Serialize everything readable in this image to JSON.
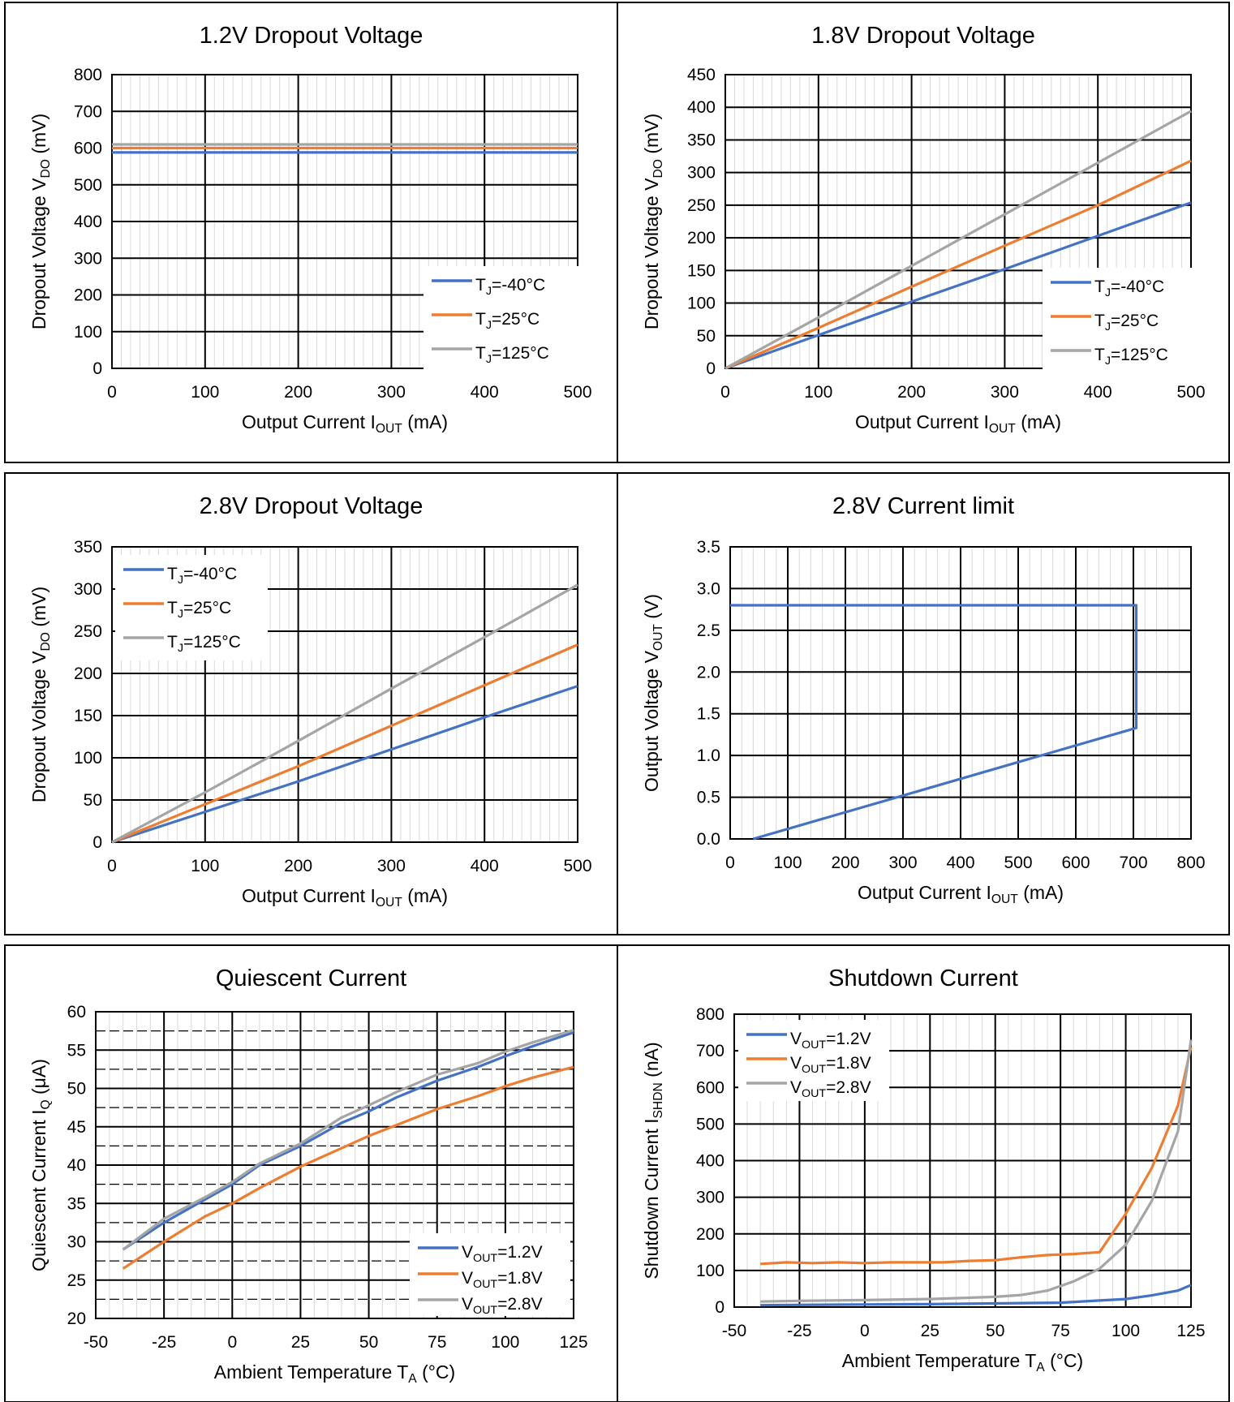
{
  "colors": {
    "blue": "#4472C4",
    "orange": "#ED7D31",
    "gray": "#A5A5A5",
    "major_grid": "#000000",
    "minor_grid": "#D9D9D9",
    "legend_bg": "#ffffff"
  },
  "chart_data": [
    {
      "type": "line",
      "title": "1.2V Dropout Voltage",
      "xlabel": {
        "main": "Output Current I",
        "sub": "OUT",
        "tail": " (mA)"
      },
      "ylabel": {
        "main": "Dropout Voltage V",
        "sub": "DO",
        "tail": " (mV)"
      },
      "xlim": [
        0,
        500
      ],
      "ylim": [
        0,
        800
      ],
      "xticks": [
        0,
        100,
        200,
        300,
        400,
        500
      ],
      "yticks": [
        0,
        100,
        200,
        300,
        400,
        500,
        600,
        700,
        800
      ],
      "xminor": 10,
      "yminor": null,
      "grid": true,
      "legend_position": "bottom-right",
      "series": [
        {
          "name": {
            "main": "T",
            "sub": "J",
            "tail": "=-40°C"
          },
          "color": "blue",
          "x": [
            0,
            500
          ],
          "y": [
            588,
            588
          ]
        },
        {
          "name": {
            "main": "T",
            "sub": "J",
            "tail": "=25°C"
          },
          "color": "orange",
          "x": [
            0,
            500
          ],
          "y": [
            600,
            600
          ]
        },
        {
          "name": {
            "main": "T",
            "sub": "J",
            "tail": "=125°C"
          },
          "color": "gray",
          "x": [
            0,
            500
          ],
          "y": [
            610,
            610
          ]
        }
      ]
    },
    {
      "type": "line",
      "title": "1.8V Dropout Voltage",
      "xlabel": {
        "main": "Output Current I",
        "sub": "OUT",
        "tail": " (mA)"
      },
      "ylabel": {
        "main": "Dropout Voltage V",
        "sub": "DO",
        "tail": " (mV)"
      },
      "xlim": [
        0,
        500
      ],
      "ylim": [
        0,
        450
      ],
      "xticks": [
        0,
        100,
        200,
        300,
        400,
        500
      ],
      "yticks": [
        0,
        50,
        100,
        150,
        200,
        250,
        300,
        350,
        400,
        450
      ],
      "xminor": 10,
      "yminor": null,
      "grid": true,
      "legend_position": "bottom-right",
      "series": [
        {
          "name": {
            "main": "T",
            "sub": "J",
            "tail": "=-40°C"
          },
          "color": "blue",
          "x": [
            0,
            100,
            200,
            300,
            400,
            500
          ],
          "y": [
            0,
            51,
            102,
            152,
            203,
            254
          ]
        },
        {
          "name": {
            "main": "T",
            "sub": "J",
            "tail": "=25°C"
          },
          "color": "orange",
          "x": [
            0,
            100,
            200,
            300,
            400,
            500
          ],
          "y": [
            0,
            62,
            125,
            188,
            250,
            318
          ]
        },
        {
          "name": {
            "main": "T",
            "sub": "J",
            "tail": "=125°C"
          },
          "color": "gray",
          "x": [
            0,
            100,
            200,
            300,
            400,
            500
          ],
          "y": [
            0,
            78,
            157,
            236,
            315,
            394
          ]
        }
      ]
    },
    {
      "type": "line",
      "title": "2.8V Dropout Voltage",
      "xlabel": {
        "main": "Output Current I",
        "sub": "OUT",
        "tail": " (mA)"
      },
      "ylabel": {
        "main": "Dropout Voltage V",
        "sub": "DO",
        "tail": " (mV)"
      },
      "xlim": [
        0,
        500
      ],
      "ylim": [
        0,
        350
      ],
      "xticks": [
        0,
        100,
        200,
        300,
        400,
        500
      ],
      "yticks": [
        0,
        50,
        100,
        150,
        200,
        250,
        300,
        350
      ],
      "xminor": 10,
      "yminor": null,
      "grid": true,
      "legend_position": "top-left",
      "series": [
        {
          "name": {
            "main": "T",
            "sub": "J",
            "tail": "=-40°C"
          },
          "color": "blue",
          "x": [
            0,
            100,
            200,
            300,
            400,
            500
          ],
          "y": [
            0,
            36,
            72,
            110,
            148,
            185
          ]
        },
        {
          "name": {
            "main": "T",
            "sub": "J",
            "tail": "=25°C"
          },
          "color": "orange",
          "x": [
            0,
            100,
            200,
            300,
            400,
            500
          ],
          "y": [
            0,
            45,
            90,
            138,
            186,
            234
          ]
        },
        {
          "name": {
            "main": "T",
            "sub": "J",
            "tail": "=125°C"
          },
          "color": "gray",
          "x": [
            0,
            100,
            200,
            300,
            400,
            500
          ],
          "y": [
            0,
            59,
            120,
            182,
            243,
            305
          ]
        }
      ]
    },
    {
      "type": "line",
      "title": "2.8V Current limit",
      "xlabel": {
        "main": "Output Current I",
        "sub": "OUT",
        "tail": " (mA)"
      },
      "ylabel": {
        "main": "Output Voltage V",
        "sub": "OUT",
        "tail": " (V)"
      },
      "xlim": [
        0,
        800
      ],
      "ylim": [
        0,
        3.5
      ],
      "xticks": [
        0,
        100,
        200,
        300,
        400,
        500,
        600,
        700,
        800
      ],
      "xticklabels": [
        "0",
        "100",
        "200",
        "300",
        "400",
        "500",
        "600",
        "700",
        "800"
      ],
      "yticks": [
        0,
        0.5,
        1,
        1.5,
        2,
        2.5,
        3,
        3.5
      ],
      "yticklabels": [
        "0.0",
        "0.5",
        "1.0",
        "1.5",
        "2.0",
        "2.5",
        "3.0",
        "3.5"
      ],
      "xminor": 20,
      "yminor": null,
      "grid": true,
      "legend_position": "none",
      "series": [
        {
          "name": null,
          "color": "blue",
          "x": [
            0,
            705,
            705,
            40
          ],
          "y": [
            2.8,
            2.8,
            1.33,
            0
          ]
        }
      ]
    },
    {
      "type": "line",
      "title": "Quiescent Current",
      "xlabel": {
        "main": "Ambient Temperature T",
        "sub": "A",
        "tail": " (°C)"
      },
      "ylabel": {
        "main": "Quiescent Current I",
        "sub": "Q",
        "tail": " (μA)"
      },
      "xlim": [
        -50,
        125
      ],
      "ylim": [
        20,
        60
      ],
      "xticks": [
        -50,
        -25,
        0,
        25,
        50,
        75,
        100,
        125
      ],
      "yticks": [
        20,
        25,
        30,
        35,
        40,
        45,
        50,
        55,
        60
      ],
      "xminor": 5,
      "yminor": 2.5,
      "grid": true,
      "legend_position": "bottom-right",
      "series": [
        {
          "name": {
            "main": "V",
            "sub": "OUT",
            "tail": "=1.2V"
          },
          "color": "blue",
          "x": [
            -40,
            -25,
            -10,
            0,
            10,
            25,
            40,
            50,
            60,
            75,
            90,
            100,
            110,
            125
          ],
          "y": [
            29,
            32.5,
            35.5,
            37.5,
            40,
            42.5,
            45.5,
            47,
            48.8,
            51,
            52.8,
            54.2,
            55.5,
            57.3
          ]
        },
        {
          "name": {
            "main": "V",
            "sub": "OUT",
            "tail": "=1.8V"
          },
          "color": "orange",
          "x": [
            -40,
            -25,
            -10,
            0,
            10,
            25,
            40,
            50,
            60,
            75,
            90,
            100,
            110,
            125
          ],
          "y": [
            26.5,
            30,
            33.3,
            35,
            37,
            39.8,
            42.2,
            43.8,
            45.2,
            47.3,
            49,
            50.3,
            51.4,
            52.8
          ]
        },
        {
          "name": {
            "main": "V",
            "sub": "OUT",
            "tail": "=2.8V"
          },
          "color": "gray",
          "x": [
            -40,
            -25,
            -10,
            0,
            10,
            25,
            40,
            50,
            60,
            75,
            90,
            100,
            110,
            125
          ],
          "y": [
            29,
            33,
            35.8,
            37.8,
            40.2,
            42.8,
            46.2,
            47.8,
            49.5,
            51.8,
            53.3,
            54.8,
            56,
            57.6
          ]
        }
      ]
    },
    {
      "type": "line",
      "title": "Shutdown Current",
      "xlabel": {
        "main": "Ambient Temperature T",
        "sub": "A",
        "tail": " (°C)"
      },
      "ylabel": {
        "main": "Shutdown Current I",
        "sub": "SHDN",
        "tail": " (nA)"
      },
      "xlim": [
        -50,
        125
      ],
      "ylim": [
        0,
        800
      ],
      "xticks": [
        -50,
        -25,
        0,
        25,
        50,
        75,
        100,
        125
      ],
      "yticks": [
        0,
        100,
        200,
        300,
        400,
        500,
        600,
        700,
        800
      ],
      "xminor": 5,
      "yminor": null,
      "grid": true,
      "legend_position": "top-left",
      "series": [
        {
          "name": {
            "main": "V",
            "sub": "OUT",
            "tail": "=1.2V"
          },
          "color": "blue",
          "x": [
            -40,
            -25,
            0,
            25,
            50,
            75,
            90,
            100,
            110,
            120,
            125
          ],
          "y": [
            5,
            6,
            7,
            8,
            10,
            12,
            18,
            22,
            32,
            45,
            60
          ]
        },
        {
          "name": {
            "main": "V",
            "sub": "OUT",
            "tail": "=1.8V"
          },
          "color": "orange",
          "x": [
            -40,
            -30,
            -20,
            -10,
            0,
            10,
            20,
            30,
            40,
            50,
            60,
            70,
            80,
            90,
            100,
            110,
            120,
            125
          ],
          "y": [
            118,
            122,
            120,
            122,
            120,
            122,
            122,
            122,
            126,
            128,
            136,
            142,
            145,
            150,
            255,
            380,
            550,
            710
          ]
        },
        {
          "name": {
            "main": "V",
            "sub": "OUT",
            "tail": "=2.8V"
          },
          "color": "gray",
          "x": [
            -40,
            -25,
            0,
            25,
            50,
            60,
            70,
            80,
            90,
            100,
            110,
            120,
            125
          ],
          "y": [
            15,
            17,
            19,
            22,
            28,
            33,
            45,
            70,
            105,
            170,
            290,
            480,
            730
          ]
        }
      ]
    }
  ]
}
